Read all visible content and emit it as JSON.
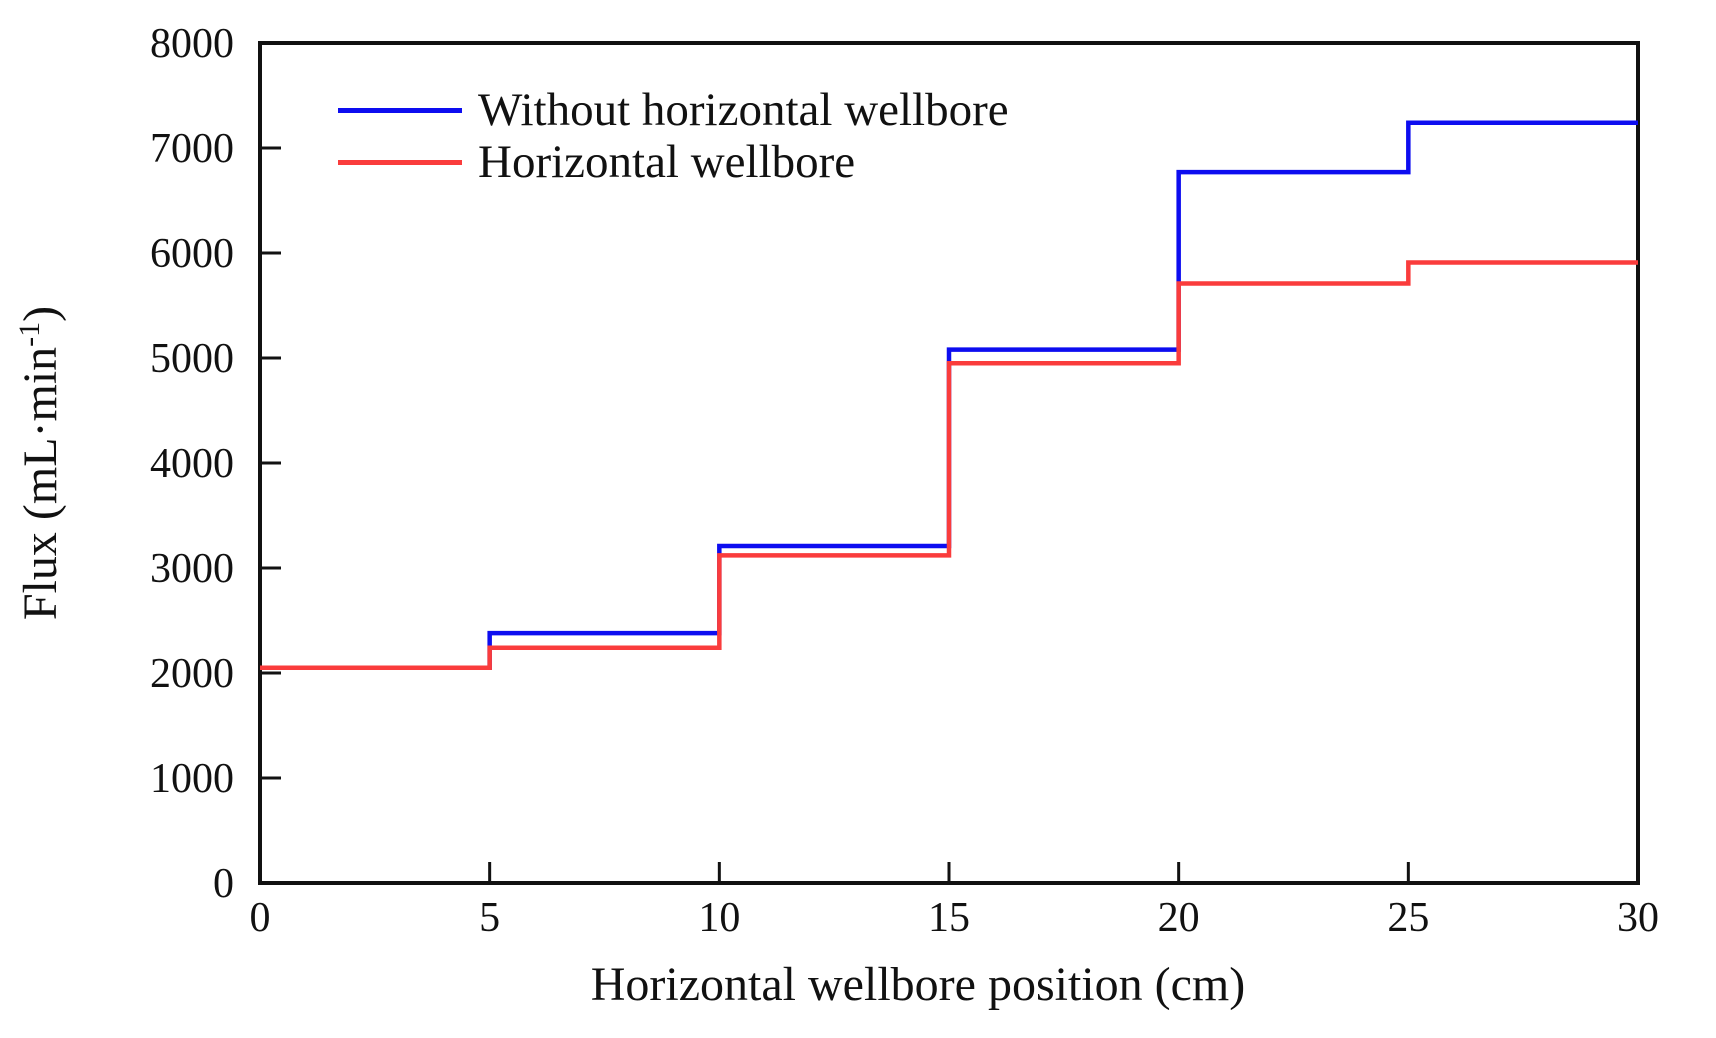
{
  "chart_data": {
    "type": "line",
    "subtype": "step-post",
    "title": "",
    "xlabel": "Horizontal wellbore position (cm)",
    "ylabel": "Flux (mL·min⁻¹)",
    "ylabel_parts": {
      "base": "Flux (mL·min",
      "sup": "-1",
      "close": ")"
    },
    "xlim": [
      0,
      30
    ],
    "ylim": [
      0,
      8000
    ],
    "x_ticks": [
      0,
      5,
      10,
      15,
      20,
      25,
      30
    ],
    "y_ticks": [
      0,
      1000,
      2000,
      3000,
      4000,
      5000,
      6000,
      7000,
      8000
    ],
    "step_x": [
      0,
      5,
      10,
      15,
      20,
      25,
      30
    ],
    "series": [
      {
        "name": "Without horizontal wellbore",
        "color": "#0d0df0",
        "values": [
          2050,
          2380,
          3210,
          5080,
          6770,
          7240
        ]
      },
      {
        "name": "Horizontal wellbore",
        "color": "#fa3c3c",
        "values": [
          2050,
          2240,
          3120,
          4950,
          5710,
          5910
        ]
      }
    ],
    "legend_position": "upper left inside",
    "grid": false,
    "axis_color": "#111111"
  }
}
